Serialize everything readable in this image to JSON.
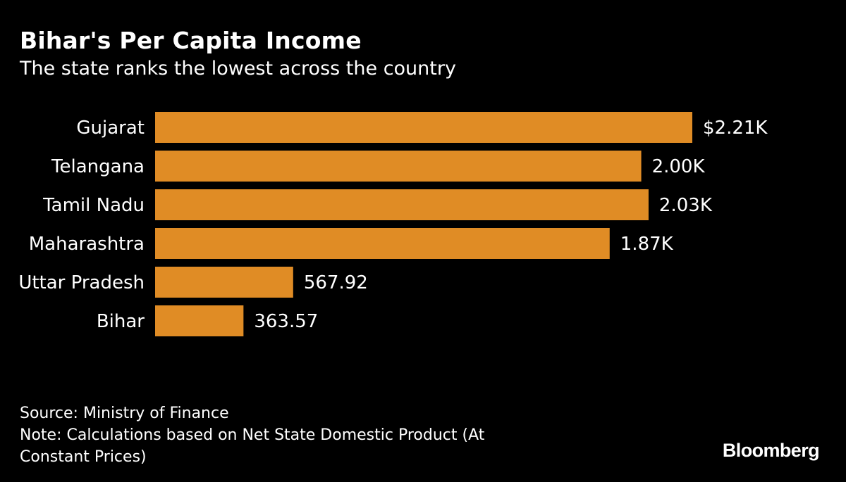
{
  "header": {
    "title": "Bihar's Per Capita Income",
    "subtitle": "The state ranks the lowest across the country"
  },
  "chart_data": {
    "type": "bar",
    "orientation": "horizontal",
    "title": "Bihar's Per Capita Income",
    "subtitle": "The state ranks the lowest across the country",
    "categories": [
      "Gujarat",
      "Telangana",
      "Tamil Nadu",
      "Maharashtra",
      "Uttar Pradesh",
      "Bihar"
    ],
    "values": [
      2210,
      2000,
      2030,
      1870,
      567.92,
      363.57
    ],
    "value_labels": [
      "$2.21K",
      "2.00K",
      "2.03K",
      "1.87K",
      "567.92",
      "363.57"
    ],
    "xlim": [
      0,
      2210
    ],
    "xlabel": "",
    "ylabel": "",
    "grid": false,
    "bar_color": "#E08C25"
  },
  "footer": {
    "source": "Source: Ministry of Finance",
    "note_line1": "Note: Calculations based on Net State Domestic Product (At",
    "note_line2": "Constant Prices)"
  },
  "brand": {
    "logo_text": "Bloomberg"
  },
  "colors": {
    "background": "#000000",
    "text": "#FFFFFF",
    "bar": "#E08C25"
  }
}
